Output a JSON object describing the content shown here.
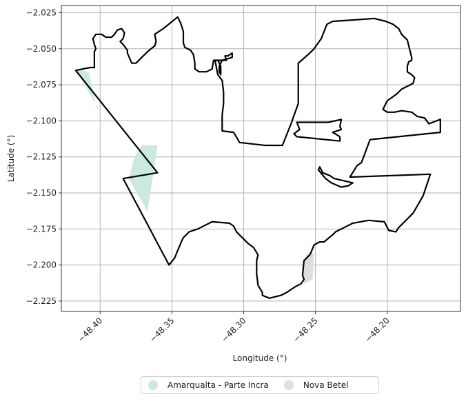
{
  "chart_data": {
    "type": "map",
    "xlabel": "Longitude (°)",
    "ylabel": "Latitude (°)",
    "xlim": [
      -48.427,
      -48.249
    ],
    "ylim": [
      -2.2322,
      -2.02
    ],
    "xlim_full": [
      -48.427,
      -48.149
    ],
    "x_ticks": [
      -48.4,
      -48.35,
      -48.3,
      -48.25,
      -48.2
    ],
    "x_tick_labels": [
      "−48.40",
      "−48.35",
      "−48.30",
      "−48.25",
      "−48.20"
    ],
    "y_ticks": [
      -2.025,
      -2.05,
      -2.075,
      -2.1,
      -2.125,
      -2.15,
      -2.175,
      -2.2,
      -2.225
    ],
    "y_tick_labels": [
      "−2.025",
      "−2.050",
      "−2.075",
      "−2.100",
      "−2.125",
      "−2.150",
      "−2.175",
      "−2.200",
      "−2.225"
    ],
    "grid": true,
    "legend_placement": "bottom-center",
    "legend": [
      {
        "name": "Amarqualta - Parte Incra",
        "color": "#cbe9dc"
      },
      {
        "name": "Nova Betel",
        "color": "#dedede"
      }
    ],
    "filled_areas": [
      {
        "name": "Amarqualta - Parte Incra",
        "color": "#cbe9dc",
        "polygons": [
          [
            [
              -48.417,
              -2.064
            ],
            [
              -48.408,
              -2.066
            ],
            [
              -48.403,
              -2.09
            ],
            [
              -48.398,
              -2.097
            ]
          ],
          [
            [
              -48.371,
              -2.117
            ],
            [
              -48.36,
              -2.117
            ],
            [
              -48.367,
              -2.163
            ],
            [
              -48.38,
              -2.14
            ],
            [
              -48.376,
              -2.125
            ]
          ]
        ]
      },
      {
        "name": "Nova Betel",
        "color": "#dedede",
        "polygons": [
          [
            [
              -48.256,
              -2.192
            ],
            [
              -48.251,
              -2.192
            ],
            [
              -48.252,
              -2.21
            ],
            [
              -48.258,
              -2.213
            ],
            [
              -48.259,
              -2.205
            ]
          ]
        ]
      }
    ],
    "boundary": [
      [
        [
          -48.417,
          -2.065
        ],
        [
          -48.407,
          -2.063
        ],
        [
          -48.404,
          -2.063
        ],
        [
          -48.404,
          -2.052
        ],
        [
          -48.403,
          -2.05
        ],
        [
          -48.404,
          -2.047
        ],
        [
          -48.405,
          -2.043
        ],
        [
          -48.403,
          -2.04
        ],
        [
          -48.399,
          -2.04
        ],
        [
          -48.396,
          -2.042
        ],
        [
          -48.392,
          -2.042
        ],
        [
          -48.39,
          -2.04
        ],
        [
          -48.388,
          -2.037
        ],
        [
          -48.385,
          -2.036
        ],
        [
          -48.383,
          -2.039
        ],
        [
          -48.384,
          -2.043
        ],
        [
          -48.386,
          -2.045
        ],
        [
          -48.384,
          -2.047
        ],
        [
          -48.381,
          -2.051
        ],
        [
          -48.381,
          -2.053
        ],
        [
          -48.378,
          -2.06
        ],
        [
          -48.375,
          -2.06
        ],
        [
          -48.371,
          -2.056
        ],
        [
          -48.367,
          -2.052
        ],
        [
          -48.362,
          -2.048
        ],
        [
          -48.361,
          -2.045
        ],
        [
          -48.362,
          -2.04
        ],
        [
          -48.356,
          -2.036
        ],
        [
          -48.346,
          -2.028
        ],
        [
          -48.344,
          -2.032
        ],
        [
          -48.342,
          -2.038
        ],
        [
          -48.342,
          -2.046
        ],
        [
          -48.341,
          -2.049
        ],
        [
          -48.337,
          -2.051
        ],
        [
          -48.335,
          -2.054
        ],
        [
          -48.334,
          -2.06
        ],
        [
          -48.334,
          -2.064
        ],
        [
          -48.331,
          -2.066
        ],
        [
          -48.326,
          -2.066
        ],
        [
          -48.322,
          -2.064
        ],
        [
          -48.321,
          -2.058
        ],
        [
          -48.312,
          -2.058
        ],
        [
          -48.313,
          -2.055
        ],
        [
          -48.311,
          -2.055
        ],
        [
          -48.308,
          -2.053
        ],
        [
          -48.308,
          -2.056
        ],
        [
          -48.315,
          -2.058
        ],
        [
          -48.317,
          -2.062
        ],
        [
          -48.317,
          -2.066
        ],
        [
          -48.316,
          -2.068
        ],
        [
          -48.316,
          -2.062
        ],
        [
          -48.318,
          -2.058
        ],
        [
          -48.32,
          -2.058
        ],
        [
          -48.318,
          -2.068
        ],
        [
          -48.315,
          -2.072
        ],
        [
          -48.314,
          -2.08
        ],
        [
          -48.314,
          -2.088
        ],
        [
          -48.315,
          -2.096
        ],
        [
          -48.315,
          -2.107
        ],
        [
          -48.307,
          -2.108
        ],
        [
          -48.304,
          -2.113
        ],
        [
          -48.303,
          -2.115
        ],
        [
          -48.285,
          -2.117
        ],
        [
          -48.273,
          -2.117
        ],
        [
          -48.267,
          -2.102
        ],
        [
          -48.262,
          -2.088
        ],
        [
          -48.262,
          -2.07
        ],
        [
          -48.262,
          -2.06
        ],
        [
          -48.255,
          -2.054
        ],
        [
          -48.251,
          -2.05
        ],
        [
          -48.246,
          -2.043
        ],
        [
          -48.242,
          -2.033
        ],
        [
          -48.238,
          -2.031
        ],
        [
          -48.223,
          -2.03
        ],
        [
          -48.209,
          -2.029
        ],
        [
          -48.201,
          -2.031
        ],
        [
          -48.196,
          -2.033
        ],
        [
          -48.192,
          -2.036
        ],
        [
          -48.19,
          -2.04
        ],
        [
          -48.186,
          -2.044
        ],
        [
          -48.184,
          -2.052
        ],
        [
          -48.183,
          -2.056
        ],
        [
          -48.183,
          -2.058
        ],
        [
          -48.185,
          -2.059
        ],
        [
          -48.186,
          -2.062
        ],
        [
          -48.186,
          -2.066
        ],
        [
          -48.183,
          -2.068
        ],
        [
          -48.181,
          -2.07
        ],
        [
          -48.182,
          -2.074
        ],
        [
          -48.186,
          -2.076
        ],
        [
          -48.19,
          -2.078
        ],
        [
          -48.193,
          -2.081
        ],
        [
          -48.197,
          -2.084
        ],
        [
          -48.2,
          -2.086
        ],
        [
          -48.203,
          -2.092
        ],
        [
          -48.2,
          -2.094
        ],
        [
          -48.195,
          -2.094
        ],
        [
          -48.19,
          -2.093
        ],
        [
          -48.183,
          -2.094
        ],
        [
          -48.179,
          -2.097
        ],
        [
          -48.174,
          -2.098
        ],
        [
          -48.171,
          -2.102
        ],
        [
          -48.163,
          -2.099
        ],
        [
          -48.163,
          -2.108
        ],
        [
          -48.212,
          -2.113
        ],
        [
          -48.218,
          -2.129
        ],
        [
          -48.221,
          -2.131
        ],
        [
          -48.226,
          -2.139
        ],
        [
          -48.17,
          -2.137
        ],
        [
          -48.175,
          -2.152
        ],
        [
          -48.182,
          -2.164
        ],
        [
          -48.188,
          -2.17
        ],
        [
          -48.192,
          -2.174
        ],
        [
          -48.194,
          -2.177
        ],
        [
          -48.199,
          -2.176
        ],
        [
          -48.202,
          -2.17
        ],
        [
          -48.213,
          -2.169
        ],
        [
          -48.224,
          -2.171
        ],
        [
          -48.236,
          -2.177
        ],
        [
          -48.238,
          -2.179
        ],
        [
          -48.244,
          -2.184
        ],
        [
          -48.247,
          -2.184
        ],
        [
          -48.251,
          -2.186
        ],
        [
          -48.253,
          -2.191
        ],
        [
          -48.254,
          -2.193
        ],
        [
          -48.258,
          -2.197
        ],
        [
          -48.259,
          -2.207
        ],
        [
          -48.258,
          -2.21
        ],
        [
          -48.26,
          -2.213
        ],
        [
          -48.264,
          -2.215
        ],
        [
          -48.27,
          -2.219
        ],
        [
          -48.274,
          -2.221
        ],
        [
          -48.282,
          -2.223
        ],
        [
          -48.287,
          -2.221
        ],
        [
          -48.287,
          -2.219
        ],
        [
          -48.29,
          -2.214
        ],
        [
          -48.291,
          -2.206
        ],
        [
          -48.291,
          -2.197
        ],
        [
          -48.29,
          -2.193
        ],
        [
          -48.293,
          -2.188
        ],
        [
          -48.297,
          -2.185
        ],
        [
          -48.302,
          -2.18
        ],
        [
          -48.305,
          -2.177
        ],
        [
          -48.307,
          -2.173
        ],
        [
          -48.31,
          -2.171
        ],
        [
          -48.322,
          -2.17
        ],
        [
          -48.332,
          -2.175
        ],
        [
          -48.338,
          -2.177
        ],
        [
          -48.342,
          -2.181
        ],
        [
          -48.343,
          -2.183
        ],
        [
          -48.346,
          -2.19
        ],
        [
          -48.348,
          -2.195
        ],
        [
          -48.352,
          -2.2
        ],
        [
          -48.384,
          -2.14
        ],
        [
          -48.36,
          -2.136
        ],
        [
          -48.417,
          -2.065
        ]
      ]
    ],
    "holes": [
      [
        [
          -48.263,
          -2.101
        ],
        [
          -48.241,
          -2.101
        ],
        [
          -48.232,
          -2.099
        ],
        [
          -48.233,
          -2.104
        ],
        [
          -48.232,
          -2.106
        ],
        [
          -48.238,
          -2.108
        ],
        [
          -48.233,
          -2.111
        ],
        [
          -48.233,
          -2.114
        ],
        [
          -48.263,
          -2.111
        ],
        [
          -48.265,
          -2.109
        ],
        [
          -48.261,
          -2.106
        ],
        [
          -48.263,
          -2.101
        ]
      ],
      [
        [
          -48.247,
          -2.132
        ],
        [
          -48.245,
          -2.136
        ],
        [
          -48.24,
          -2.138
        ],
        [
          -48.237,
          -2.14
        ],
        [
          -48.224,
          -2.143
        ],
        [
          -48.227,
          -2.145
        ],
        [
          -48.232,
          -2.146
        ],
        [
          -48.239,
          -2.143
        ],
        [
          -48.243,
          -2.14
        ],
        [
          -48.248,
          -2.134
        ],
        [
          -48.247,
          -2.132
        ]
      ]
    ]
  }
}
